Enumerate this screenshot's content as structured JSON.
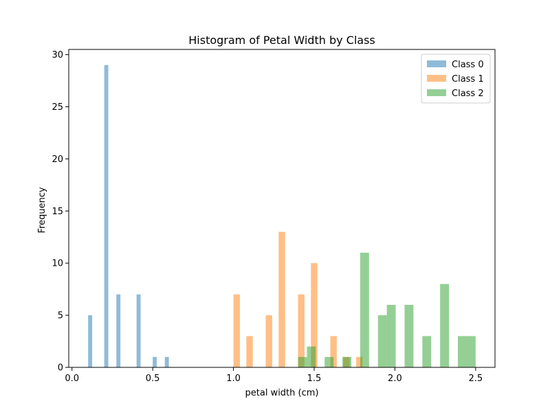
{
  "chart_data": {
    "type": "bar",
    "title": "Histogram of Petal Width by Class",
    "xlabel": "petal width (cm)",
    "ylabel": "Frequency",
    "xlim": [
      -0.02,
      2.62
    ],
    "ylim": [
      0,
      30.5
    ],
    "xticks": [
      0.0,
      0.5,
      1.0,
      1.5,
      2.0,
      2.5
    ],
    "xtick_labels": [
      "0.0",
      "0.5",
      "1.0",
      "1.5",
      "2.0",
      "2.5"
    ],
    "yticks": [
      0,
      5,
      10,
      15,
      20,
      25,
      30
    ],
    "ytick_labels": [
      "0",
      "5",
      "10",
      "15",
      "20",
      "25",
      "30"
    ],
    "grid": false,
    "legend_position": "top-right",
    "series": [
      {
        "name": "Class 0",
        "color": "#1f77b4",
        "opacity": 0.5,
        "bins": [
          {
            "x0": 0.1,
            "x1": 0.125,
            "value": 5
          },
          {
            "x0": 0.2,
            "x1": 0.225,
            "value": 29
          },
          {
            "x0": 0.275,
            "x1": 0.3,
            "value": 7
          },
          {
            "x0": 0.4,
            "x1": 0.425,
            "value": 7
          },
          {
            "x0": 0.5,
            "x1": 0.525,
            "value": 1
          },
          {
            "x0": 0.575,
            "x1": 0.6,
            "value": 1
          }
        ]
      },
      {
        "name": "Class 1",
        "color": "#ff7f0e",
        "opacity": 0.5,
        "bins": [
          {
            "x0": 1.0,
            "x1": 1.04,
            "value": 7
          },
          {
            "x0": 1.08,
            "x1": 1.12,
            "value": 3
          },
          {
            "x0": 1.2,
            "x1": 1.24,
            "value": 5
          },
          {
            "x0": 1.28,
            "x1": 1.32,
            "value": 13
          },
          {
            "x0": 1.4,
            "x1": 1.44,
            "value": 7
          },
          {
            "x0": 1.48,
            "x1": 1.52,
            "value": 10
          },
          {
            "x0": 1.6,
            "x1": 1.64,
            "value": 3
          },
          {
            "x0": 1.68,
            "x1": 1.72,
            "value": 1
          },
          {
            "x0": 1.76,
            "x1": 1.8,
            "value": 1
          }
        ]
      },
      {
        "name": "Class 2",
        "color": "#2ca02c",
        "opacity": 0.5,
        "bins": [
          {
            "x0": 1.4,
            "x1": 1.455,
            "value": 1
          },
          {
            "x0": 1.455,
            "x1": 1.51,
            "value": 2
          },
          {
            "x0": 1.565,
            "x1": 1.62,
            "value": 1
          },
          {
            "x0": 1.675,
            "x1": 1.73,
            "value": 1
          },
          {
            "x0": 1.785,
            "x1": 1.84,
            "value": 11
          },
          {
            "x0": 1.895,
            "x1": 1.95,
            "value": 5
          },
          {
            "x0": 1.95,
            "x1": 2.005,
            "value": 6
          },
          {
            "x0": 2.06,
            "x1": 2.115,
            "value": 6
          },
          {
            "x0": 2.17,
            "x1": 2.225,
            "value": 3
          },
          {
            "x0": 2.28,
            "x1": 2.335,
            "value": 8
          },
          {
            "x0": 2.39,
            "x1": 2.445,
            "value": 3
          },
          {
            "x0": 2.445,
            "x1": 2.5,
            "value": 3
          }
        ]
      }
    ]
  }
}
